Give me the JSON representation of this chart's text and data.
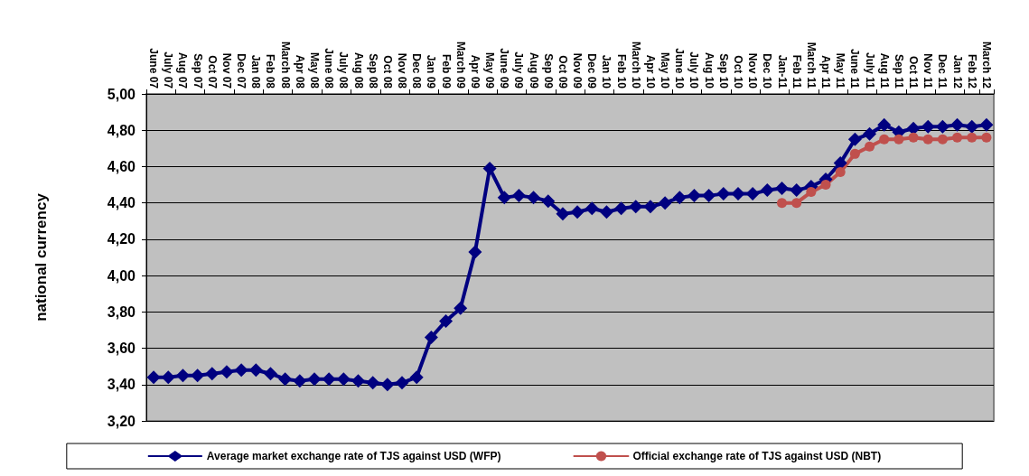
{
  "chart_data": {
    "type": "line",
    "ylabel": "national currency",
    "categories": [
      "June 07",
      "July 07",
      "Aug 07",
      "Sep 07",
      "Oct 07",
      "Nov 07",
      "Dec 07",
      "Jan 08",
      "Feb 08",
      "March 08",
      "Apr 08",
      "May 08",
      "June 08",
      "July 08",
      "Aug 08",
      "Sep 08",
      "Oct 08",
      "Nov 08",
      "Dec 08",
      "Jan 09",
      "Feb 09",
      "March 09",
      "Apr 09",
      "May 09",
      "June 09",
      "July 09",
      "Aug 09",
      "Sep 09",
      "Oct 09",
      "Nov 09",
      "Dec 09",
      "Jan 10",
      "Feb 10",
      "March 10",
      "Apr 10",
      "May 10",
      "June 10",
      "July 10",
      "Aug 10",
      "Sep 10",
      "Oct 10",
      "Nov 10",
      "Dec 10",
      "Jan-11",
      "Feb 11",
      "March 11",
      "Apr 11",
      "May 11",
      "June 11",
      "July 11",
      "Aug 11",
      "Sep 11",
      "Oct 11",
      "Nov 11",
      "Dec 11",
      "Jan 12",
      "Feb 12",
      "March 12"
    ],
    "series": [
      {
        "name": "Average market exchange rate of TJS against USD (WFP)",
        "color": "#000080",
        "values": [
          3.44,
          3.44,
          3.45,
          3.45,
          3.46,
          3.47,
          3.48,
          3.48,
          3.46,
          3.43,
          3.42,
          3.43,
          3.43,
          3.43,
          3.42,
          3.41,
          3.4,
          3.41,
          3.44,
          3.66,
          3.75,
          3.82,
          4.13,
          4.59,
          4.43,
          4.44,
          4.43,
          4.41,
          4.34,
          4.35,
          4.37,
          4.35,
          4.37,
          4.38,
          4.38,
          4.4,
          4.43,
          4.44,
          4.44,
          4.45,
          4.45,
          4.45,
          4.47,
          4.48,
          4.47,
          4.49,
          4.53,
          4.62,
          4.75,
          4.78,
          4.83,
          4.79,
          4.81,
          4.82,
          4.82,
          4.83,
          4.82,
          4.83
        ]
      },
      {
        "name": "Official exchange rate of TJS against USD (NBT)",
        "color": "#c0504d",
        "marker": "circle",
        "values": [
          null,
          null,
          null,
          null,
          null,
          null,
          null,
          null,
          null,
          null,
          null,
          null,
          null,
          null,
          null,
          null,
          null,
          null,
          null,
          null,
          null,
          null,
          null,
          null,
          null,
          null,
          null,
          null,
          null,
          null,
          null,
          null,
          null,
          null,
          null,
          null,
          null,
          null,
          null,
          null,
          null,
          null,
          null,
          4.4,
          4.4,
          4.46,
          4.5,
          4.57,
          4.67,
          4.71,
          4.75,
          4.75,
          4.76,
          4.75,
          4.75,
          4.76,
          4.76,
          4.76
        ]
      }
    ],
    "ylim": [
      3.2,
      5.0
    ],
    "yticks": [
      {
        "value": 3.2,
        "label": "3,20"
      },
      {
        "value": 3.4,
        "label": "3,40"
      },
      {
        "value": 3.6,
        "label": "3,60"
      },
      {
        "value": 3.8,
        "label": "3,80"
      },
      {
        "value": 4.0,
        "label": "4,00"
      },
      {
        "value": 4.2,
        "label": "4,20"
      },
      {
        "value": 4.4,
        "label": "4,40"
      },
      {
        "value": 4.6,
        "label": "4,60"
      },
      {
        "value": 4.8,
        "label": "4,80"
      },
      {
        "value": 5.0,
        "label": "5,00"
      }
    ],
    "grid": "y",
    "legend": "bottom",
    "marker": "diamond",
    "line_style": "solid"
  }
}
